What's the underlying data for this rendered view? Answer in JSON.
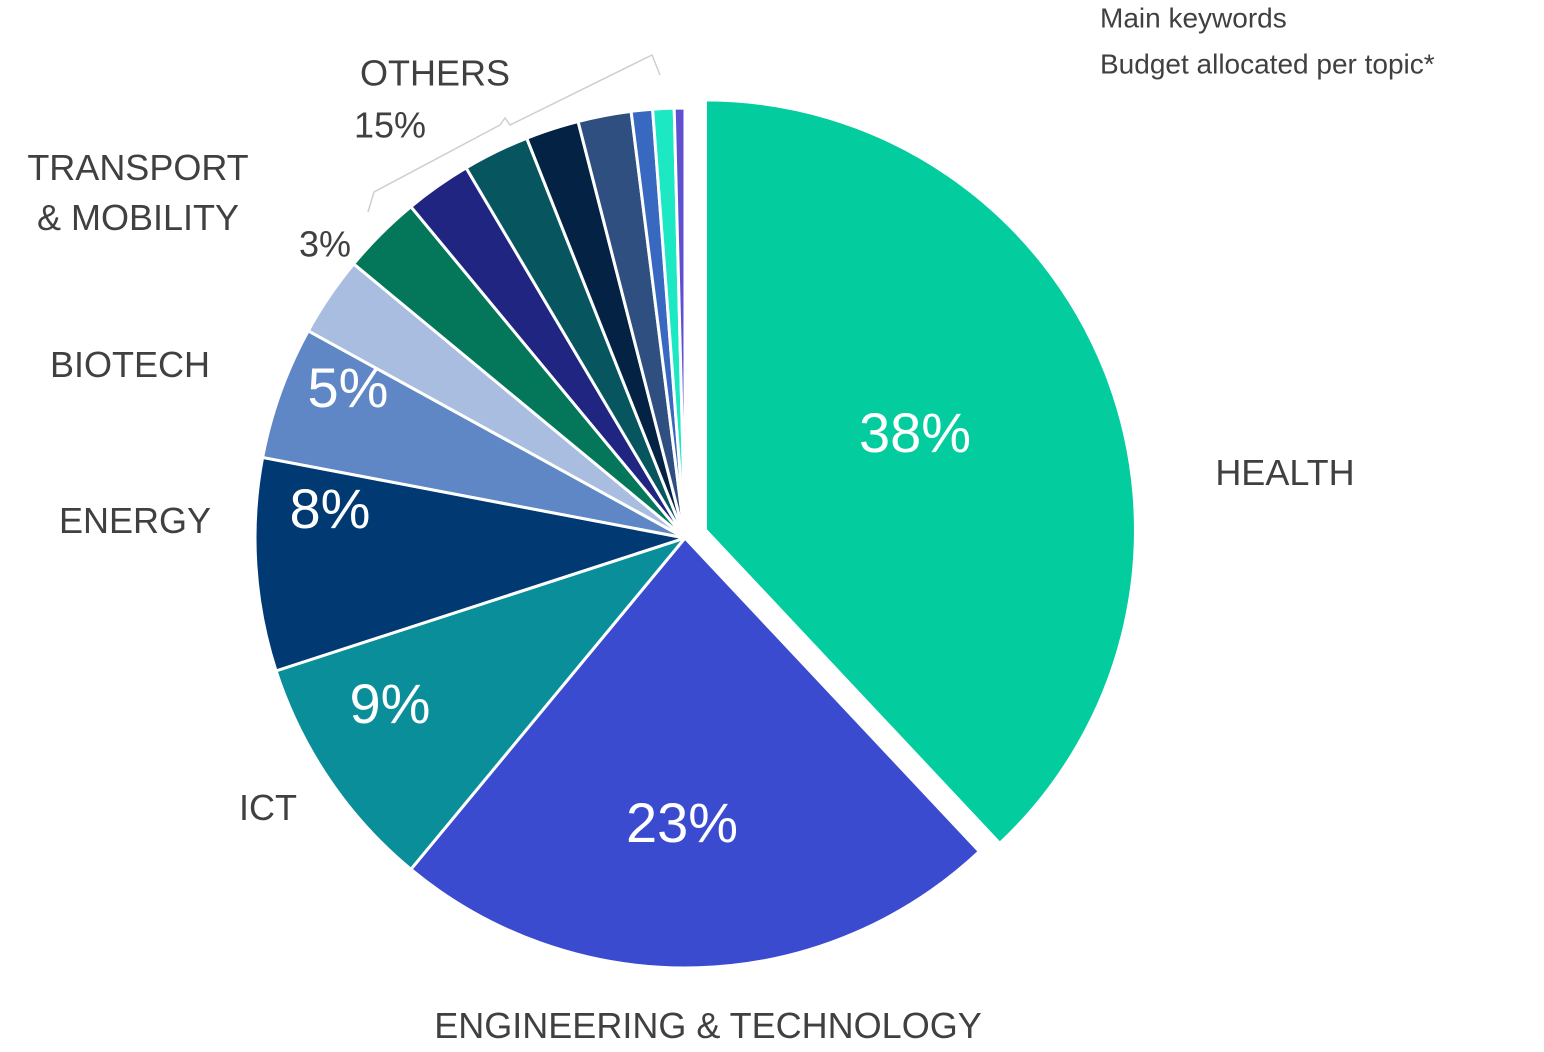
{
  "chart_data": {
    "type": "pie",
    "notes": [
      "Main keywords",
      "Budget allocated per topic*"
    ],
    "categories": [
      "HEALTH",
      "ENGINEERING & TECHNOLOGY",
      "ICT",
      "ENERGY",
      "BIOTECH",
      "TRANSPORT\n& MOBILITY",
      null,
      null,
      null,
      null,
      null,
      null,
      null,
      null
    ],
    "values": [
      38,
      23,
      9,
      8,
      5,
      3,
      3,
      2.5,
      2.5,
      2,
      2,
      0.8,
      0.8,
      0.4
    ],
    "value_labels": [
      "38%",
      "23%",
      "9%",
      "8%",
      "5%",
      "3%",
      null,
      null,
      null,
      null,
      null,
      null,
      null,
      null
    ],
    "colors": [
      "#03cc9f",
      "#3b4bd0",
      "#0a8f9a",
      "#013a73",
      "#5f87c6",
      "#a8bde0",
      "#04775a",
      "#1f2580",
      "#07555f",
      "#032244",
      "#2f4f80",
      "#3868c0",
      "#1de8c4",
      "#6050d0"
    ],
    "groups": [
      {
        "name": "OTHERS",
        "value": 15,
        "value_label": "15%"
      }
    ]
  }
}
